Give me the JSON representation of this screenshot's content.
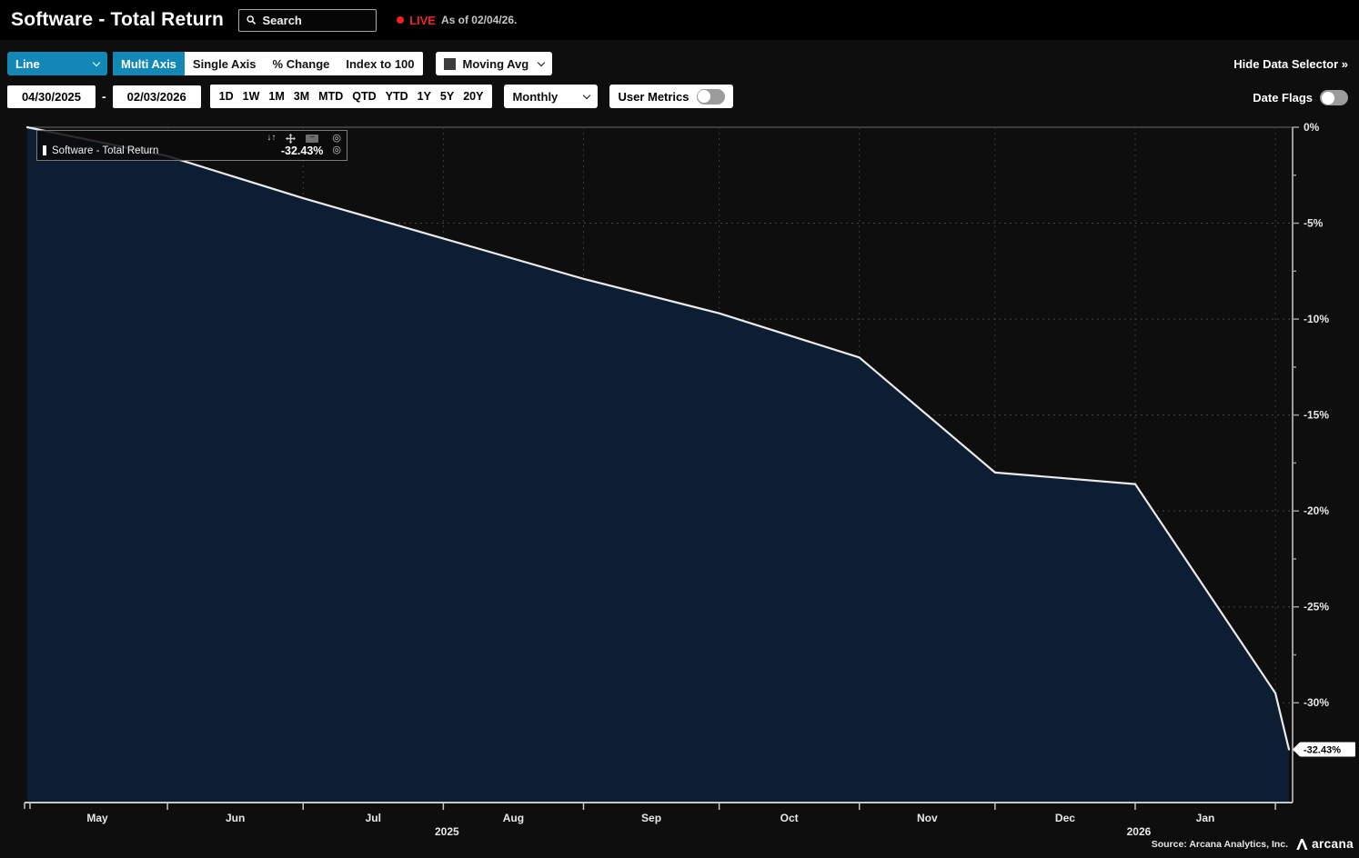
{
  "header": {
    "title": "Software - Total Return",
    "search_placeholder": "Search",
    "live_label": "LIVE",
    "as_of_label": "As of 02/04/26."
  },
  "toolbar": {
    "chart_type_selected": "Line",
    "axis_modes": [
      "Multi Axis",
      "Single Axis",
      "% Change",
      "Index to 100"
    ],
    "active_axis_mode": "Multi Axis",
    "overlay_selected": "Moving Avg",
    "hide_data_selector_label": "Hide Data Selector »",
    "date_from": "04/30/2025",
    "date_separator": "-",
    "date_to": "02/03/2026",
    "range_buttons": [
      "1D",
      "1W",
      "1M",
      "3M",
      "MTD",
      "QTD",
      "YTD",
      "1Y",
      "5Y",
      "20Y"
    ],
    "frequency_selected": "Monthly",
    "user_metrics_label": "User Metrics",
    "user_metrics_on": false,
    "date_flags_label": "Date Flags",
    "date_flags_on": false
  },
  "legend": {
    "series_name": "Software - Total Return",
    "series_value": "-32.43%",
    "controls": {
      "sort": "↓↑",
      "collapse": "−",
      "focus": "◎",
      "visibility": "◎"
    }
  },
  "chart_data": {
    "type": "area",
    "title": "Software - Total Return",
    "unit": "%",
    "x_range": [
      "2025-04-30",
      "2026-02-03"
    ],
    "x": [
      "2025-04-30",
      "2025-05-31",
      "2025-06-30",
      "2025-07-31",
      "2025-08-31",
      "2025-09-30",
      "2025-10-31",
      "2025-11-30",
      "2025-12-31",
      "2026-01-31",
      "2026-02-03"
    ],
    "values": [
      0,
      -1.5,
      -3.7,
      -5.8,
      -7.9,
      -9.7,
      -12.0,
      -18.0,
      -18.6,
      -29.5,
      -32.43
    ],
    "last_value_label": "-32.43%",
    "ylim": [
      -35.2,
      0
    ],
    "y_ticks": [
      0,
      -5,
      -10,
      -15,
      -20,
      -25,
      -30
    ],
    "y_tick_labels": [
      "0%",
      "-5%",
      "-10%",
      "-15%",
      "-20%",
      "-25%",
      "-30%"
    ],
    "y_minor_step": 2.5,
    "x_boundaries": [
      "2025-05-31",
      "2025-06-30",
      "2025-07-31",
      "2025-08-31",
      "2025-09-30",
      "2025-10-31",
      "2025-11-30",
      "2025-12-31",
      "2026-01-31"
    ],
    "x_month_labels": [
      "May",
      "Jun",
      "Jul",
      "Aug",
      "Sep",
      "Oct",
      "Nov",
      "Dec",
      "Jan"
    ],
    "year_labels": [
      "2025",
      "2026"
    ],
    "year_label_dates": [
      "2025-07-31",
      "2025-12-31"
    ],
    "grid": true,
    "legend_position": "top-left",
    "line_color": "#ebebeb",
    "fill_color": "#0d1e33",
    "accent_color": "#1388b7"
  },
  "footer": {
    "source": "Source: Arcana Analytics, Inc.",
    "brand": "arcana"
  }
}
